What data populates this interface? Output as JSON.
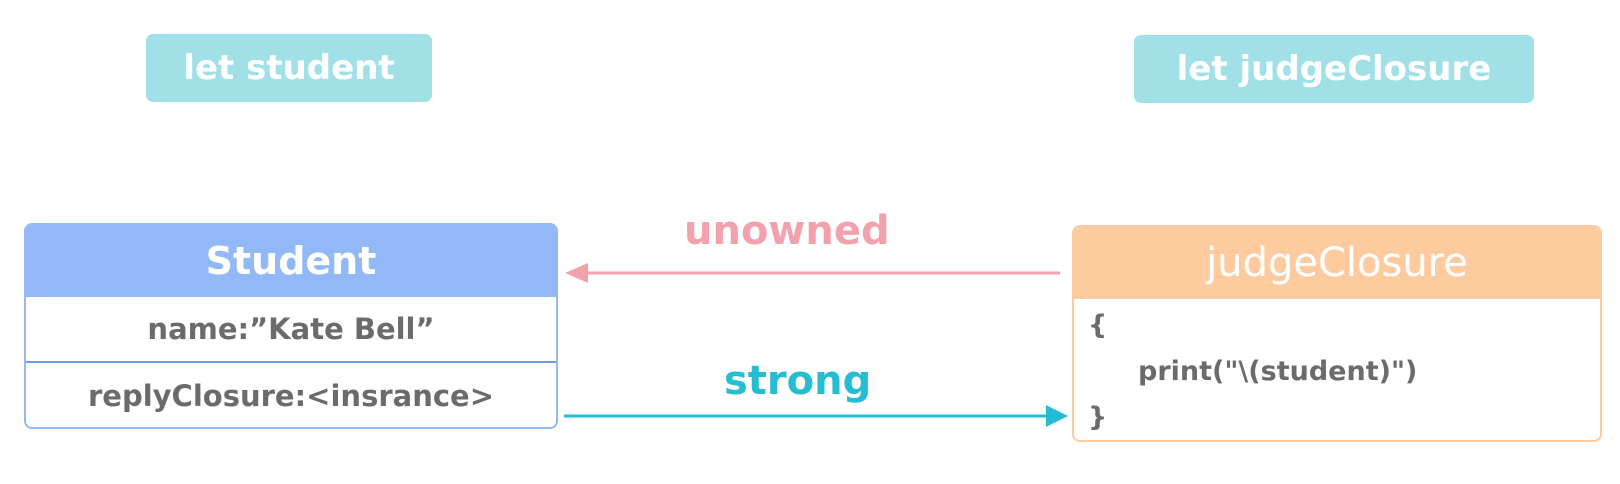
{
  "colors": {
    "pill": "#a0e0e6",
    "student_header": "#92b8f7",
    "student_border": "#92b8f7",
    "student_divider": "#6e9be8",
    "judge_header": "#fecb9f",
    "judge_border": "#fecb9f",
    "unowned": "#f2a2ad",
    "strong": "#26bcd1",
    "text": "#6b6b6b"
  },
  "variables": {
    "student": "let student",
    "judge_closure": "let judgeClosure"
  },
  "student_box": {
    "title": "Student",
    "name_row": "name:”Kate Bell”",
    "reply_row": "replyClosure:<insrance>"
  },
  "judge_box": {
    "title": "judgeClosure",
    "code_open": "{",
    "code_body": "print(\"\\(student)\")",
    "code_close": "}"
  },
  "edges": {
    "unowned": {
      "label": "unowned",
      "from": "judgeClosure",
      "to": "Student"
    },
    "strong": {
      "label": "strong",
      "from": "Student",
      "to": "judgeClosure"
    }
  }
}
